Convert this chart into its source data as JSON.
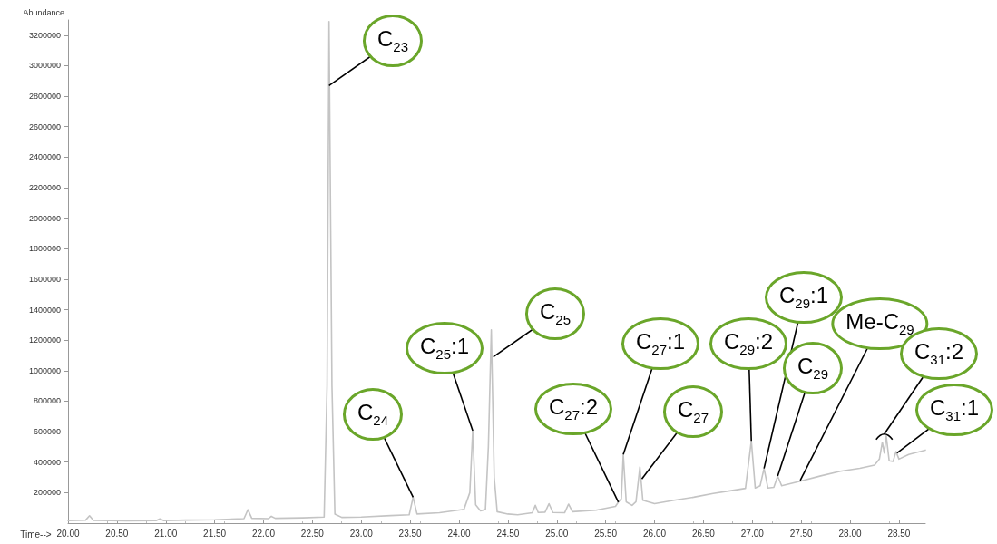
{
  "chart_data": {
    "type": "line",
    "xlabel": "Time-->",
    "ylabel": "Abundance",
    "xlim": [
      20,
      28.77
    ],
    "xticks": [
      {
        "value": 20,
        "label": "20.00"
      },
      {
        "value": 20.5,
        "label": "20.50"
      },
      {
        "value": 21,
        "label": "21.00"
      },
      {
        "value": 21.5,
        "label": "21.50"
      },
      {
        "value": 22,
        "label": "22.00"
      },
      {
        "value": 22.5,
        "label": "22.50"
      },
      {
        "value": 23,
        "label": "23.00"
      },
      {
        "value": 23.5,
        "label": "23.50"
      },
      {
        "value": 24,
        "label": "24.00"
      },
      {
        "value": 24.5,
        "label": "24.50"
      },
      {
        "value": 25,
        "label": "25.00"
      },
      {
        "value": 25.5,
        "label": "25.50"
      },
      {
        "value": 26,
        "label": "26.00"
      },
      {
        "value": 26.5,
        "label": "26.50"
      },
      {
        "value": 27,
        "label": "27.00"
      },
      {
        "value": 27.5,
        "label": "27.50"
      },
      {
        "value": 28,
        "label": "28.00"
      },
      {
        "value": 28.5,
        "label": "28.50"
      }
    ],
    "ylim": [
      0,
      3300000
    ],
    "yticks": [
      200000,
      400000,
      600000,
      800000,
      1000000,
      1200000,
      1400000,
      1600000,
      1800000,
      2000000,
      2200000,
      2400000,
      2600000,
      2800000,
      3000000,
      3200000
    ],
    "grid": false,
    "marker": "none",
    "line_style": "solid",
    "series": [
      {
        "color": "#c4c4c4",
        "x": [
          20.0,
          20.18,
          20.22,
          20.26,
          20.6,
          20.9,
          20.94,
          20.98,
          21.2,
          21.5,
          21.8,
          21.84,
          21.88,
          22.05,
          22.08,
          22.12,
          22.4,
          22.62,
          22.65,
          22.67,
          22.7,
          22.73,
          22.8,
          23.0,
          23.3,
          23.49,
          23.53,
          23.57,
          23.8,
          24.05,
          24.11,
          24.14,
          24.17,
          24.22,
          24.27,
          24.3,
          24.33,
          24.36,
          24.39,
          24.5,
          24.6,
          24.75,
          24.78,
          24.81,
          24.88,
          24.92,
          24.96,
          25.08,
          25.12,
          25.16,
          25.4,
          25.6,
          25.63,
          25.66,
          25.68,
          25.71,
          25.77,
          25.81,
          25.85,
          25.88,
          26.0,
          26.2,
          26.4,
          26.6,
          26.8,
          26.93,
          26.99,
          27.03,
          27.08,
          27.12,
          27.16,
          27.22,
          27.26,
          27.3,
          27.49,
          27.7,
          27.9,
          28.1,
          28.25,
          28.3,
          28.33,
          28.35,
          28.37,
          28.4,
          28.44,
          28.47,
          28.5,
          28.6,
          28.77
        ],
        "values": [
          17000,
          20000,
          49000,
          18000,
          15000,
          16000,
          28000,
          16000,
          20000,
          22000,
          30000,
          88000,
          32000,
          30000,
          45000,
          32000,
          35000,
          40000,
          900000,
          3290000,
          900000,
          60000,
          38000,
          40000,
          50000,
          55000,
          170000,
          60000,
          68000,
          90000,
          200000,
          607000,
          120000,
          80000,
          90000,
          500000,
          1267000,
          300000,
          75000,
          60000,
          55000,
          68000,
          117000,
          70000,
          72000,
          128000,
          70000,
          68000,
          125000,
          75000,
          85000,
          110000,
          138000,
          160000,
          450000,
          140000,
          117000,
          140000,
          368000,
          150000,
          128000,
          150000,
          170000,
          195000,
          215000,
          228000,
          540000,
          230000,
          245000,
          359000,
          230000,
          235000,
          309000,
          245000,
          275000,
          310000,
          340000,
          360000,
          380000,
          420000,
          531000,
          460000,
          572000,
          409000,
          405000,
          470000,
          420000,
          450000,
          479000
        ]
      }
    ],
    "annotations": [
      {
        "text": "C$_{23}$",
        "x": 22.67,
        "y": 2870000
      },
      {
        "text": "C$_{24}$",
        "x": 23.53,
        "y": 170000
      },
      {
        "text": "C$_{25}$:1",
        "x": 24.14,
        "y": 607000
      },
      {
        "text": "C$_{25}$",
        "x": 24.35,
        "y": 1090000
      },
      {
        "text": "C$_{27}$:2",
        "x": 25.63,
        "y": 138000
      },
      {
        "text": "C$_{27}$:1",
        "x": 25.68,
        "y": 450000
      },
      {
        "text": "C$_{27}$",
        "x": 25.87,
        "y": 290000
      },
      {
        "text": "C$_{29}$:2",
        "x": 26.99,
        "y": 540000
      },
      {
        "text": "C$_{29}$:1",
        "x": 27.12,
        "y": 359000
      },
      {
        "text": "C$_{29}$",
        "x": 27.26,
        "y": 309000
      },
      {
        "text": "Me-C$_{29}$",
        "x": 27.49,
        "y": 280000
      },
      {
        "text": "C$_{31}$:2",
        "x": 28.35,
        "y": 584000
      },
      {
        "text": "C$_{31}$:1",
        "x": 28.48,
        "y": 460000
      }
    ]
  }
}
